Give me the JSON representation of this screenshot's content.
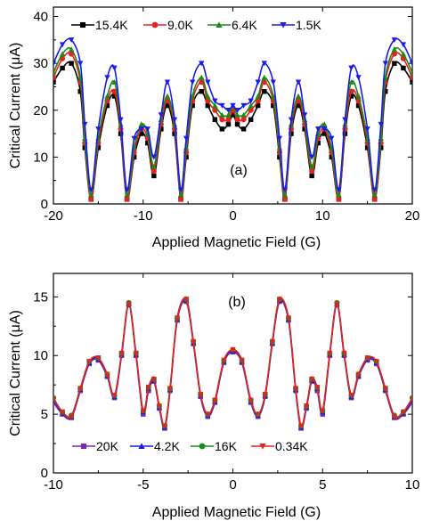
{
  "colors": {
    "black": "#000000",
    "red": "#e8201e",
    "green": "#1a8a1a",
    "blue": "#1a1aee",
    "purple": "#7a2aa8"
  },
  "chart_data": [
    {
      "type": "line",
      "panel_label": "(a)",
      "xlabel": "Applied Magnetic Field (G)",
      "ylabel": "Critical Current (μA)",
      "xlim": [
        -20,
        20
      ],
      "ylim": [
        0,
        42
      ],
      "xticks": [
        -20,
        -10,
        0,
        10,
        20
      ],
      "xtick_labels": [
        "-20",
        "-10",
        "0",
        "10",
        "20"
      ],
      "yticks": [
        0,
        10,
        20,
        30,
        40
      ],
      "ytick_labels": [
        "0",
        "10",
        "20",
        "30",
        "40"
      ],
      "legend_position": "top",
      "grid": false,
      "x": [
        -20,
        -19,
        -18,
        -17,
        -16.5,
        -15.8,
        -15,
        -14,
        -13.2,
        -12.5,
        -11.8,
        -11,
        -10.2,
        -9.5,
        -8.8,
        -8,
        -7.3,
        -6.5,
        -5.8,
        -5.2,
        -4.5,
        -3.5,
        -2.8,
        -2.0,
        -1.2,
        -0.5,
        0,
        0.5,
        1.2,
        2.0,
        2.8,
        3.5,
        4.5,
        5.2,
        5.8,
        6.5,
        7.3,
        8,
        8.8,
        9.5,
        10.2,
        11,
        11.8,
        12.5,
        13.2,
        14,
        15,
        15.8,
        16.5,
        17,
        18,
        19,
        20
      ],
      "series": [
        {
          "name": "15.4K",
          "color": "#000000",
          "marker": "square",
          "values": [
            26,
            29,
            30,
            24,
            12,
            1,
            12,
            21,
            23,
            15,
            1,
            10,
            15,
            13,
            6,
            16,
            21,
            15,
            1,
            10,
            21,
            24,
            21,
            18,
            16,
            17,
            19,
            17,
            16,
            18,
            21,
            24,
            21,
            10,
            1,
            15,
            21,
            16,
            6,
            13,
            15,
            10,
            1,
            15,
            23,
            21,
            12,
            1,
            12,
            24,
            30,
            29,
            26
          ]
        },
        {
          "name": "9.0K",
          "color": "#e8201e",
          "marker": "circle",
          "values": [
            27,
            31,
            32,
            26,
            13,
            1,
            13,
            22,
            24,
            16,
            1,
            11,
            16,
            14,
            7,
            17,
            22,
            16,
            1,
            11,
            22,
            26,
            22,
            20,
            18,
            18,
            20,
            18,
            18,
            20,
            22,
            26,
            22,
            11,
            1,
            16,
            22,
            17,
            7,
            14,
            16,
            11,
            1,
            16,
            24,
            22,
            13,
            1,
            13,
            26,
            32,
            31,
            27
          ]
        },
        {
          "name": "6.4K",
          "color": "#1a8a1a",
          "marker": "triangle-up",
          "values": [
            28,
            32,
            33,
            27,
            14,
            2,
            14,
            23,
            26,
            17,
            2,
            12,
            17,
            15,
            8,
            18,
            23,
            17,
            2,
            12,
            23,
            27,
            23,
            21,
            19,
            19,
            21,
            19,
            19,
            21,
            23,
            27,
            23,
            12,
            2,
            17,
            23,
            18,
            8,
            15,
            17,
            12,
            2,
            17,
            26,
            23,
            14,
            2,
            14,
            27,
            33,
            32,
            28
          ]
        },
        {
          "name": "1.5K",
          "color": "#1a1aee",
          "marker": "triangle-down",
          "values": [
            30,
            34,
            35,
            30,
            17,
            3,
            16,
            27,
            29,
            18,
            3,
            14,
            16,
            16,
            10,
            19,
            26,
            18,
            3,
            14,
            26,
            30,
            26,
            22,
            21,
            20,
            21,
            20,
            21,
            22,
            26,
            30,
            26,
            14,
            3,
            18,
            26,
            19,
            10,
            16,
            16,
            14,
            3,
            18,
            29,
            27,
            16,
            3,
            17,
            30,
            35,
            34,
            30
          ]
        }
      ]
    },
    {
      "type": "line",
      "panel_label": "(b)",
      "xlabel": "Applied Magnetic Field (G)",
      "ylabel": "Critical Current (μA)",
      "xlim": [
        -10,
        10
      ],
      "ylim": [
        0,
        17
      ],
      "xticks": [
        -10,
        -5,
        0,
        5,
        10
      ],
      "xtick_labels": [
        "-10",
        "-5",
        "0",
        "5",
        "10"
      ],
      "yticks": [
        0,
        5,
        10,
        15
      ],
      "ytick_labels": [
        "0",
        "5",
        "10",
        "15"
      ],
      "legend_position": "bottom",
      "grid": false,
      "x": [
        -10,
        -9.5,
        -9,
        -8.5,
        -8,
        -7.5,
        -7,
        -6.6,
        -6.2,
        -5.8,
        -5.4,
        -5.0,
        -4.7,
        -4.4,
        -4.1,
        -3.8,
        -3.5,
        -3.1,
        -2.6,
        -2.2,
        -1.8,
        -1.4,
        -1.0,
        -0.5,
        0,
        0.5,
        1.0,
        1.4,
        1.8,
        2.2,
        2.6,
        3.1,
        3.5,
        3.8,
        4.1,
        4.4,
        4.7,
        5.0,
        5.4,
        5.8,
        6.2,
        6.6,
        7,
        7.5,
        8,
        8.5,
        9,
        9.5,
        10
      ],
      "series": [
        {
          "name": "20K",
          "color": "#7a2aa8",
          "marker": "square",
          "values": [
            6,
            5,
            4.7,
            7,
            9.3,
            9.6,
            8.2,
            6.4,
            10,
            14.3,
            10,
            5,
            7,
            7.8,
            5.5,
            3.8,
            7,
            13,
            14.6,
            11,
            6.5,
            4.8,
            6,
            9.4,
            10.3,
            9.4,
            6,
            4.8,
            6.5,
            11,
            14.6,
            13,
            7,
            3.8,
            5.5,
            7.8,
            7,
            5,
            10,
            14.3,
            10,
            6.4,
            8.2,
            9.6,
            9.3,
            7,
            4.7,
            5,
            6
          ]
        },
        {
          "name": "4.2K",
          "color": "#1a1aee",
          "marker": "triangle-up",
          "values": [
            6.2,
            5.1,
            4.8,
            7.1,
            9.4,
            9.7,
            8.3,
            6.5,
            10.1,
            14.4,
            10.1,
            5.2,
            7.2,
            7.9,
            5.6,
            3.9,
            7.1,
            13.1,
            14.7,
            11.1,
            6.6,
            4.9,
            6.1,
            9.5,
            10.4,
            9.5,
            6.1,
            4.9,
            6.6,
            11.1,
            14.7,
            13.1,
            7.1,
            3.9,
            5.6,
            7.9,
            7.2,
            5.2,
            10.1,
            14.4,
            10.1,
            6.5,
            8.3,
            9.7,
            9.4,
            7.1,
            4.8,
            5.1,
            6.2
          ]
        },
        {
          "name": "16K",
          "color": "#1a8a1a",
          "marker": "circle",
          "values": [
            6.4,
            5.2,
            4.9,
            7.2,
            9.5,
            9.8,
            8.4,
            6.6,
            10.2,
            14.5,
            10.2,
            5.3,
            7.3,
            8.0,
            5.7,
            4.0,
            7.2,
            13.2,
            14.8,
            11.2,
            6.7,
            5.0,
            6.2,
            9.6,
            10.5,
            9.6,
            6.2,
            5.0,
            6.7,
            11.2,
            14.8,
            13.2,
            7.2,
            4.0,
            5.7,
            8.0,
            7.3,
            5.3,
            10.2,
            14.5,
            10.2,
            6.6,
            8.4,
            9.8,
            9.5,
            7.2,
            4.9,
            5.2,
            6.4
          ]
        },
        {
          "name": "0.34K",
          "color": "#e8201e",
          "marker": "triangle-down",
          "values": [
            6.3,
            5.2,
            4.8,
            7.2,
            9.5,
            9.8,
            8.4,
            6.6,
            10.2,
            14.4,
            10.2,
            5.3,
            7.3,
            8.0,
            5.7,
            4.0,
            7.2,
            13.2,
            14.8,
            11.2,
            6.7,
            5.0,
            6.2,
            9.6,
            10.5,
            9.6,
            6.2,
            5.0,
            6.7,
            11.2,
            14.8,
            13.2,
            7.2,
            4.0,
            5.7,
            8.0,
            7.3,
            5.3,
            10.2,
            14.4,
            10.2,
            6.6,
            8.4,
            9.8,
            9.5,
            7.2,
            4.8,
            5.2,
            6.3
          ]
        }
      ]
    }
  ]
}
